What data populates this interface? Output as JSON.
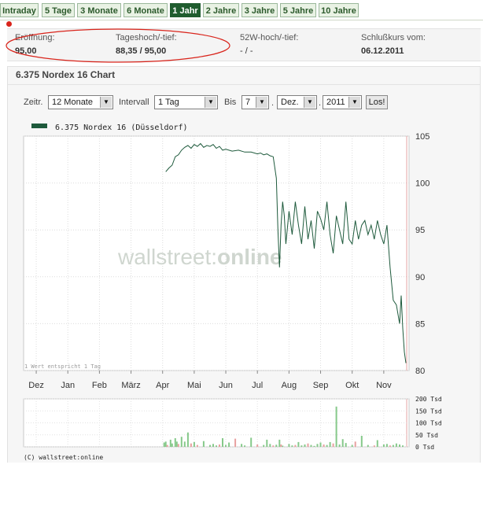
{
  "tabs": [
    {
      "label": "Intraday",
      "active": false
    },
    {
      "label": "5 Tage",
      "active": false
    },
    {
      "label": "3 Monate",
      "active": false
    },
    {
      "label": "6 Monate",
      "active": false
    },
    {
      "label": "1 Jahr",
      "active": true
    },
    {
      "label": "2 Jahre",
      "active": false
    },
    {
      "label": "3 Jahre",
      "active": false
    },
    {
      "label": "5 Jahre",
      "active": false
    },
    {
      "label": "10 Jahre",
      "active": false
    }
  ],
  "quote": {
    "open_label": "Eröffnung:",
    "open_value": "95,00",
    "daily_label": "Tageshoch/-tief:",
    "daily_value": "88,35 / 95,00",
    "week52_label": "52W-hoch/-tief:",
    "week52_value": "- / -",
    "close_label": "Schlußkurs vom:",
    "close_value": "06.12.2011"
  },
  "panel": {
    "title": "6.375 Nordex 16 Chart",
    "zeitr_label": "Zeitr.",
    "zeitr_value": "12 Monate",
    "intervall_label": "Intervall",
    "intervall_value": "1 Tag",
    "bis_label": "Bis",
    "day_value": "7",
    "month_value": "Dez.",
    "year_value": "2011",
    "submit_label": "Los!"
  },
  "colors": {
    "line": "#1e5a3c",
    "accent": "#1f5c2e",
    "volume_up": "#86c98a",
    "volume_down": "#e8a0a0",
    "marker_red": "#d9241b"
  },
  "chart_data": {
    "type": "line",
    "legend": "6.375 Nordex 16 (Düsseldorf)",
    "note": "1 Wert entspricht 1 Tag",
    "watermark_left": "wallstreet:",
    "watermark_right": "online",
    "copyright": "(C) wallstreet:online",
    "x_ticks": [
      "Dez",
      "Jan",
      "Feb",
      "März",
      "Apr",
      "Mai",
      "Jun",
      "Jul",
      "Aug",
      "Sep",
      "Okt",
      "Nov"
    ],
    "x_tick_pos": [
      0,
      1,
      2,
      3,
      4,
      5,
      6,
      7,
      8,
      9,
      10,
      11
    ],
    "ylim": [
      80,
      105
    ],
    "y_ticks": [
      80,
      85,
      90,
      95,
      100,
      105
    ],
    "xlim": [
      -0.4,
      11.8
    ],
    "series": [
      {
        "x": [
          4.1,
          4.2,
          4.3,
          4.4,
          4.5,
          4.6,
          4.7,
          4.8,
          4.9,
          5.0,
          5.1,
          5.2,
          5.3,
          5.4,
          5.5,
          5.6,
          5.7,
          5.8,
          5.9,
          6.0,
          6.2,
          6.4,
          6.6,
          6.8,
          7.0,
          7.1,
          7.2,
          7.3,
          7.4,
          7.5,
          7.6,
          7.65,
          7.7,
          7.75,
          7.8,
          7.85,
          7.9,
          8.0,
          8.1,
          8.2,
          8.3,
          8.4,
          8.5,
          8.6,
          8.7,
          8.8,
          8.9,
          9.0,
          9.1,
          9.2,
          9.3,
          9.4,
          9.5,
          9.6,
          9.7,
          9.8,
          9.9,
          10.0,
          10.1,
          10.2,
          10.3,
          10.4,
          10.5,
          10.6,
          10.7,
          10.8,
          10.9,
          11.0,
          11.1,
          11.2,
          11.3,
          11.4,
          11.5,
          11.55,
          11.6,
          11.65,
          11.7
        ],
        "values": [
          101.2,
          101.6,
          101.9,
          102.8,
          103.0,
          103.5,
          103.8,
          104.0,
          103.7,
          104.1,
          103.9,
          104.2,
          103.8,
          104.0,
          103.9,
          104.1,
          103.7,
          103.9,
          103.5,
          103.6,
          103.4,
          103.5,
          103.3,
          103.3,
          103.1,
          103.2,
          103.0,
          103.1,
          102.9,
          102.8,
          100.5,
          95.0,
          91.0,
          95.5,
          98.0,
          96.5,
          93.5,
          97.0,
          94.5,
          98.0,
          95.5,
          93.5,
          97.5,
          94.0,
          96.0,
          93.0,
          97.0,
          96.2,
          95.0,
          98.0,
          94.5,
          92.5,
          96.5,
          95.0,
          93.5,
          98.0,
          94.0,
          93.5,
          96.0,
          94.0,
          95.5,
          96.0,
          94.5,
          95.5,
          94.0,
          96.0,
          94.5,
          93.5,
          95.5,
          91.0,
          87.5,
          87.0,
          85.0,
          88.0,
          84.5,
          82.0,
          80.8
        ]
      }
    ],
    "volume": {
      "ylim": [
        0,
        200
      ],
      "y_ticks": [
        0,
        50,
        100,
        150,
        200
      ],
      "y_tick_labels": [
        "0 Tsd",
        "50 Tsd",
        "100 Tsd",
        "150 Tsd",
        "200 Tsd"
      ],
      "x": [
        4.05,
        4.1,
        4.15,
        4.25,
        4.3,
        4.4,
        4.45,
        4.5,
        4.6,
        4.7,
        4.8,
        4.9,
        5.0,
        5.1,
        5.3,
        5.5,
        5.6,
        5.7,
        5.8,
        5.9,
        6.0,
        6.1,
        6.3,
        6.5,
        6.6,
        6.8,
        7.0,
        7.2,
        7.3,
        7.4,
        7.5,
        7.6,
        7.7,
        7.75,
        7.8,
        8.0,
        8.1,
        8.2,
        8.3,
        8.4,
        8.5,
        8.6,
        8.7,
        8.8,
        8.9,
        9.0,
        9.1,
        9.2,
        9.3,
        9.4,
        9.5,
        9.6,
        9.7,
        9.8,
        10.0,
        10.1,
        10.3,
        10.5,
        10.7,
        10.8,
        11.0,
        11.1,
        11.2,
        11.3,
        11.4,
        11.5,
        11.6
      ],
      "values": [
        18,
        22,
        8,
        30,
        14,
        36,
        22,
        12,
        42,
        22,
        60,
        14,
        20,
        8,
        24,
        8,
        12,
        6,
        10,
        36,
        8,
        18,
        34,
        12,
        6,
        38,
        10,
        8,
        30,
        12,
        6,
        9,
        30,
        10,
        5,
        12,
        6,
        8,
        20,
        6,
        10,
        14,
        8,
        4,
        12,
        18,
        10,
        8,
        20,
        14,
        168,
        10,
        32,
        16,
        8,
        22,
        46,
        8,
        6,
        28,
        10,
        12,
        6,
        8,
        14,
        10,
        6
      ],
      "down_idx": [
        2,
        7,
        11,
        13,
        18,
        22,
        26,
        30,
        33,
        37,
        41,
        46,
        49,
        55,
        58,
        62
      ]
    }
  }
}
